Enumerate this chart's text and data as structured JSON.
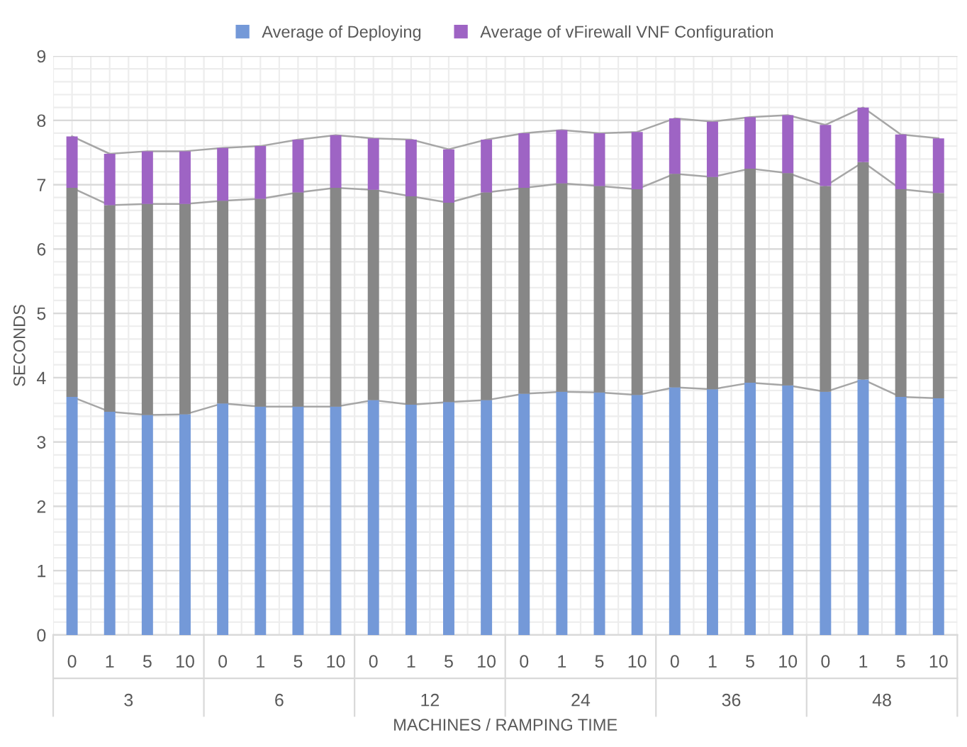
{
  "chart_data": {
    "type": "bar",
    "stacked": true,
    "xlabel": "MACHINES / RAMPING TIME",
    "ylabel": "SECONDS",
    "categories": [
      "0",
      "1",
      "5",
      "10",
      "0",
      "1",
      "5",
      "10",
      "0",
      "1",
      "5",
      "10",
      "0",
      "1",
      "5",
      "10",
      "0",
      "1",
      "5",
      "10",
      "0",
      "1",
      "5",
      "10"
    ],
    "annotations": [
      "3",
      "6",
      "12",
      "24",
      "36",
      "48"
    ],
    "series": [
      {
        "name": "Average of Deploying",
        "color": "#7499d8",
        "values": [
          3.7,
          3.47,
          3.42,
          3.43,
          3.6,
          3.55,
          3.55,
          3.55,
          3.65,
          3.58,
          3.62,
          3.65,
          3.75,
          3.78,
          3.77,
          3.73,
          3.85,
          3.82,
          3.92,
          3.88,
          3.78,
          3.97,
          3.7,
          3.68
        ]
      },
      {
        "color": "#878787",
        "values": [
          3.25,
          3.21,
          3.28,
          3.27,
          3.15,
          3.23,
          3.33,
          3.4,
          3.27,
          3.24,
          3.1,
          3.23,
          3.2,
          3.24,
          3.21,
          3.2,
          3.32,
          3.3,
          3.33,
          3.3,
          3.2,
          3.38,
          3.23,
          3.19
        ]
      },
      {
        "name": "Average of vFirewall VNF Configuration",
        "color": "#9e64c4",
        "values": [
          0.8,
          0.8,
          0.82,
          0.82,
          0.82,
          0.82,
          0.82,
          0.82,
          0.8,
          0.88,
          0.83,
          0.82,
          0.85,
          0.83,
          0.82,
          0.89,
          0.86,
          0.86,
          0.8,
          0.9,
          0.95,
          0.85,
          0.85,
          0.85
        ]
      }
    ],
    "ylim": [
      0,
      9
    ],
    "yticks": [
      0,
      1,
      2,
      3,
      4,
      5,
      6,
      7,
      8,
      9
    ],
    "grid": true,
    "legend": "top"
  }
}
